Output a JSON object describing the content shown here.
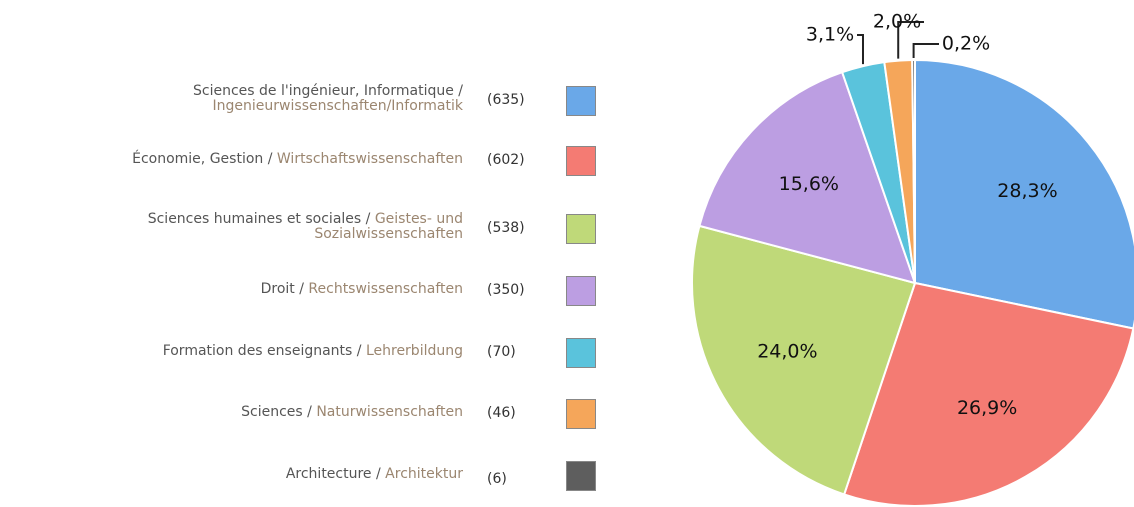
{
  "chart_data": {
    "type": "pie",
    "categories": [
      {
        "fr": "Sciences de l'ingénieur, Informatique /",
        "de": "Ingenieurwissenschaften/Informatik"
      },
      {
        "fr": "Économie, Gestion /",
        "de": "Wirtschaftswissenschaften"
      },
      {
        "fr": "Sciences humaines et sociales /",
        "de": "Geistes- und Sozialwissenschaften"
      },
      {
        "fr": "Droit /",
        "de": "Rechtswissenschaften"
      },
      {
        "fr": "Formation des enseignants /",
        "de": "Lehrerbildung"
      },
      {
        "fr": "Sciences /",
        "de": "Naturwissenschaften"
      },
      {
        "fr": "Architecture /",
        "de": "Architektur"
      }
    ],
    "values": [
      28.3,
      26.9,
      24.0,
      15.6,
      3.1,
      2.0,
      0.2
    ],
    "value_labels": [
      "28,3%",
      "26,9%",
      "24,0%",
      "15,6%",
      "3,1%",
      "2,0%",
      "0,2%"
    ],
    "counts": [
      635,
      602,
      538,
      350,
      70,
      46,
      6
    ],
    "count_labels": [
      "(635)",
      "(602)",
      "(538)",
      "(350)",
      "(70)",
      "(46)",
      "(6)"
    ],
    "colors": [
      "#6aa8e8",
      "#f47b73",
      "#bfd979",
      "#bc9ee2",
      "#5ac3dc",
      "#f5a65a",
      "#5e5e5e"
    ]
  }
}
